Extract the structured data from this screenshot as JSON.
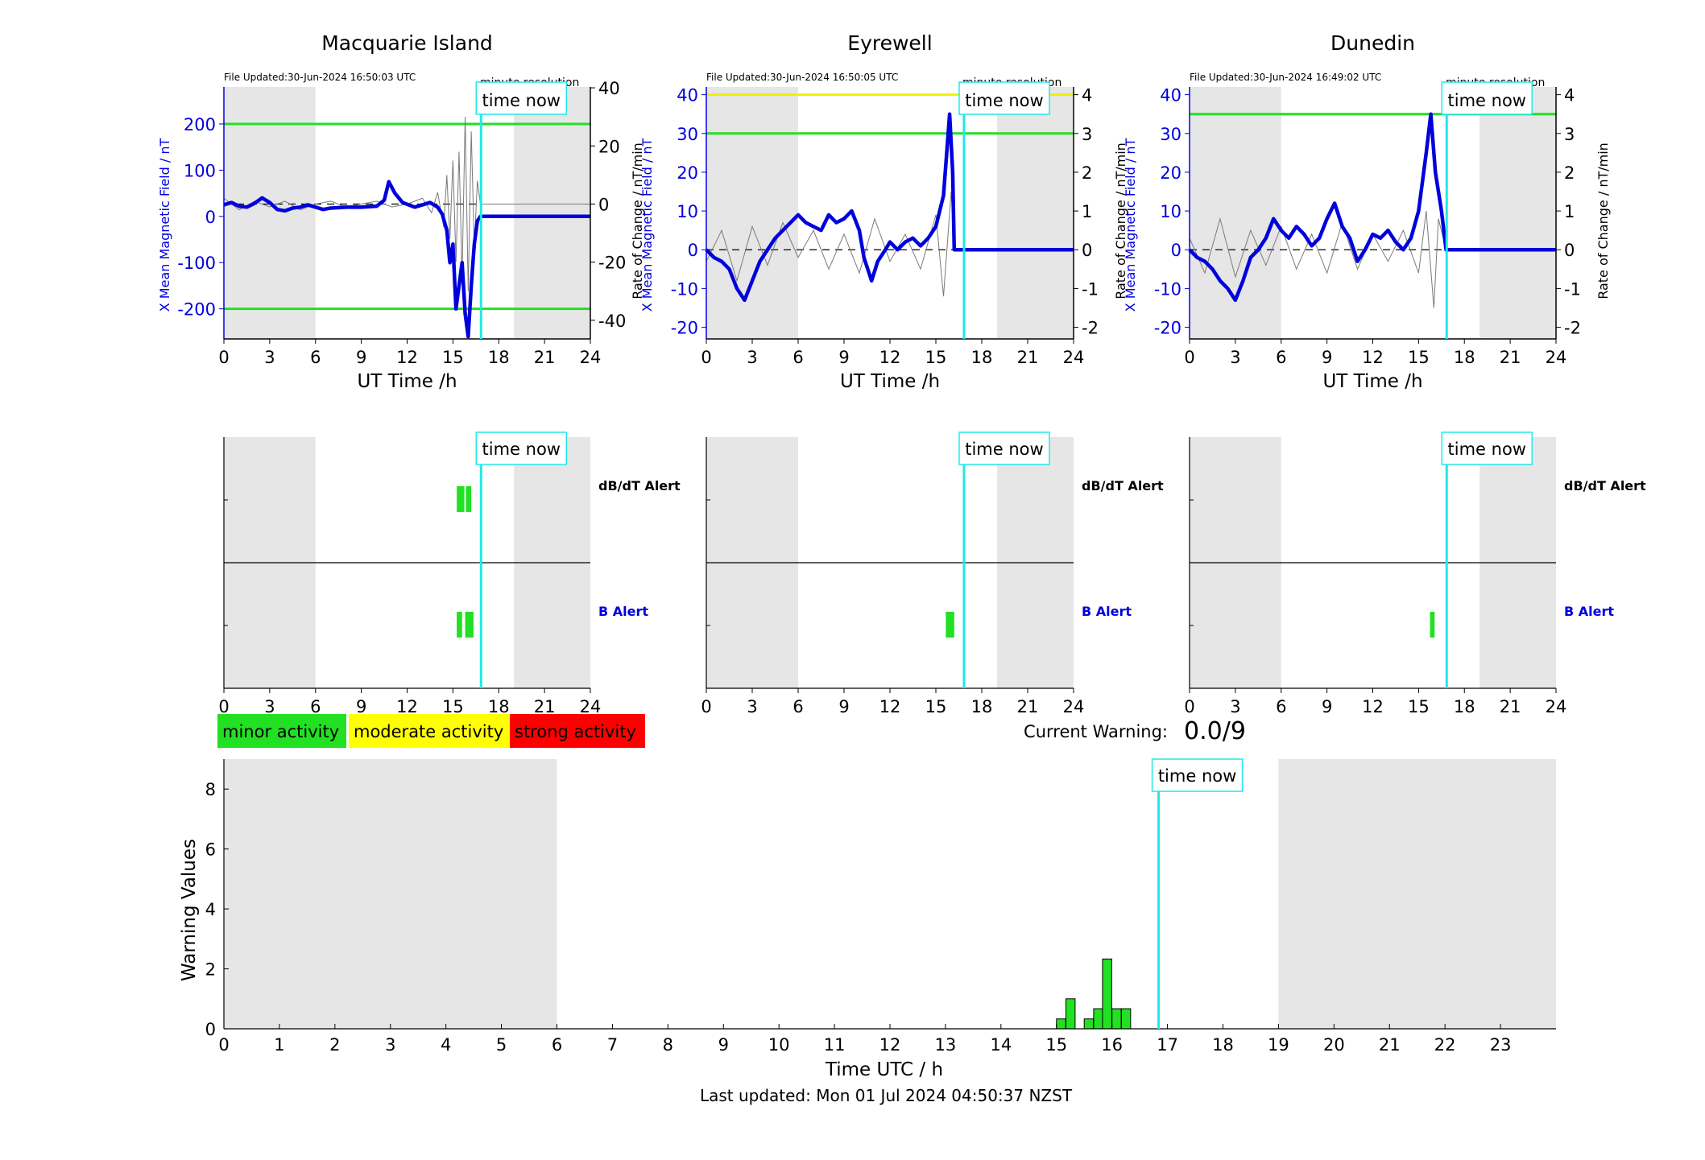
{
  "stations": [
    {
      "name": "Macquarie Island",
      "file_updated": "File Updated:30-Jun-2024 16:50:03 UTC",
      "resolution": "minute resolution",
      "y_left_ticks": [
        -200,
        -100,
        0,
        100,
        200
      ],
      "y_left_range": [
        -265,
        280
      ],
      "y_right_ticks": [
        -40,
        -20,
        0,
        20,
        40
      ],
      "y_right_range": [
        -46.4,
        40.3
      ],
      "thresholds": [
        {
          "value": 200,
          "color": "#22e022"
        },
        {
          "value": -200,
          "color": "#22e022"
        }
      ],
      "x_mean": [
        [
          0,
          25
        ],
        [
          0.5,
          30
        ],
        [
          1,
          22
        ],
        [
          1.5,
          20
        ],
        [
          2,
          28
        ],
        [
          2.5,
          40
        ],
        [
          3,
          30
        ],
        [
          3.5,
          15
        ],
        [
          4,
          12
        ],
        [
          4.5,
          18
        ],
        [
          5,
          20
        ],
        [
          5.5,
          25
        ],
        [
          6,
          20
        ],
        [
          6.5,
          15
        ],
        [
          7,
          18
        ],
        [
          8,
          20
        ],
        [
          9,
          20
        ],
        [
          10,
          22
        ],
        [
          10.5,
          35
        ],
        [
          10.8,
          75
        ],
        [
          11.2,
          50
        ],
        [
          11.7,
          30
        ],
        [
          12.5,
          20
        ],
        [
          13,
          25
        ],
        [
          13.5,
          30
        ],
        [
          14,
          20
        ],
        [
          14.3,
          5
        ],
        [
          14.6,
          -30
        ],
        [
          14.8,
          -100
        ],
        [
          15,
          -60
        ],
        [
          15.2,
          -200
        ],
        [
          15.4,
          -150
        ],
        [
          15.6,
          -100
        ],
        [
          15.8,
          -210
        ],
        [
          16,
          -260
        ],
        [
          16.2,
          -150
        ],
        [
          16.4,
          -60
        ],
        [
          16.6,
          -10
        ],
        [
          16.8,
          0
        ],
        [
          24,
          0
        ]
      ],
      "rate_change": [
        [
          0,
          2
        ],
        [
          1,
          -2
        ],
        [
          2,
          1
        ],
        [
          3,
          -1
        ],
        [
          4,
          1
        ],
        [
          5,
          -2
        ],
        [
          6,
          0
        ],
        [
          7,
          1
        ],
        [
          8,
          -1
        ],
        [
          9,
          0
        ],
        [
          10,
          1
        ],
        [
          11,
          -1
        ],
        [
          12,
          0
        ],
        [
          13,
          2
        ],
        [
          13.6,
          -3
        ],
        [
          14,
          4
        ],
        [
          14.4,
          -8
        ],
        [
          14.6,
          10
        ],
        [
          14.8,
          -12
        ],
        [
          15,
          15
        ],
        [
          15.2,
          -20
        ],
        [
          15.4,
          18
        ],
        [
          15.6,
          -25
        ],
        [
          15.8,
          30
        ],
        [
          16,
          -30
        ],
        [
          16.2,
          25
        ],
        [
          16.4,
          -15
        ],
        [
          16.6,
          8
        ],
        [
          16.8,
          0
        ],
        [
          24,
          0
        ]
      ],
      "alerts": {
        "dbdt": [
          [
            15.25,
            15.75
          ],
          [
            15.85,
            16.2
          ]
        ],
        "b": [
          [
            15.25,
            15.6
          ],
          [
            15.8,
            16.35
          ]
        ]
      }
    },
    {
      "name": "Eyrewell",
      "file_updated": "File Updated:30-Jun-2024 16:50:05 UTC",
      "resolution": "minute resolution",
      "y_left_ticks": [
        -20,
        -10,
        0,
        10,
        20,
        30,
        40
      ],
      "y_left_range": [
        -23,
        42
      ],
      "y_right_ticks": [
        -2,
        -1,
        0,
        1,
        2,
        3,
        4
      ],
      "y_right_range": [
        -2.3,
        4.2
      ],
      "thresholds": [
        {
          "value": 40,
          "color": "#f0f000"
        },
        {
          "value": 30,
          "color": "#22e022"
        }
      ],
      "x_mean": [
        [
          0,
          0
        ],
        [
          0.5,
          -2
        ],
        [
          1,
          -3
        ],
        [
          1.5,
          -5
        ],
        [
          2,
          -10
        ],
        [
          2.5,
          -13
        ],
        [
          3,
          -8
        ],
        [
          3.5,
          -3
        ],
        [
          4,
          0
        ],
        [
          4.5,
          3
        ],
        [
          5,
          5
        ],
        [
          5.5,
          7
        ],
        [
          6,
          9
        ],
        [
          6.5,
          7
        ],
        [
          7,
          6
        ],
        [
          7.5,
          5
        ],
        [
          8,
          9
        ],
        [
          8.5,
          7
        ],
        [
          9,
          8
        ],
        [
          9.5,
          10
        ],
        [
          10,
          5
        ],
        [
          10.3,
          -2
        ],
        [
          10.8,
          -8
        ],
        [
          11.2,
          -3
        ],
        [
          11.7,
          0
        ],
        [
          12,
          2
        ],
        [
          12.5,
          0
        ],
        [
          13,
          2
        ],
        [
          13.5,
          3
        ],
        [
          14,
          1
        ],
        [
          14.5,
          3
        ],
        [
          15,
          6
        ],
        [
          15.5,
          14
        ],
        [
          15.9,
          35
        ],
        [
          16.1,
          20
        ],
        [
          16.2,
          0
        ],
        [
          24,
          0
        ]
      ],
      "rate_change": [
        [
          0,
          -0.3
        ],
        [
          1,
          0.5
        ],
        [
          2,
          -0.8
        ],
        [
          3,
          0.6
        ],
        [
          4,
          -0.4
        ],
        [
          5,
          0.7
        ],
        [
          6,
          -0.2
        ],
        [
          7,
          0.5
        ],
        [
          8,
          -0.5
        ],
        [
          9,
          0.4
        ],
        [
          10,
          -0.6
        ],
        [
          11,
          0.8
        ],
        [
          12,
          -0.3
        ],
        [
          13,
          0.4
        ],
        [
          14,
          -0.5
        ],
        [
          15,
          0.9
        ],
        [
          15.5,
          -1.2
        ],
        [
          16,
          1.5
        ],
        [
          16.2,
          0
        ],
        [
          24,
          0
        ]
      ],
      "alerts": {
        "dbdt": [],
        "b": [
          [
            15.65,
            16.2
          ]
        ]
      }
    },
    {
      "name": "Dunedin",
      "file_updated": "File Updated:30-Jun-2024 16:49:02 UTC",
      "resolution": "minute resolution",
      "y_left_ticks": [
        -20,
        -10,
        0,
        10,
        20,
        30,
        40
      ],
      "y_left_range": [
        -23,
        42
      ],
      "y_right_ticks": [
        -2,
        -1,
        0,
        1,
        2,
        3,
        4
      ],
      "y_right_range": [
        -2.3,
        4.2
      ],
      "thresholds": [
        {
          "value": 35,
          "color": "#22e022"
        }
      ],
      "x_mean": [
        [
          0,
          0
        ],
        [
          0.5,
          -2
        ],
        [
          1,
          -3
        ],
        [
          1.5,
          -5
        ],
        [
          2,
          -8
        ],
        [
          2.5,
          -10
        ],
        [
          3,
          -13
        ],
        [
          3.5,
          -8
        ],
        [
          4,
          -2
        ],
        [
          4.5,
          0
        ],
        [
          5,
          3
        ],
        [
          5.5,
          8
        ],
        [
          6,
          5
        ],
        [
          6.5,
          3
        ],
        [
          7,
          6
        ],
        [
          7.5,
          4
        ],
        [
          8,
          1
        ],
        [
          8.5,
          3
        ],
        [
          9,
          8
        ],
        [
          9.5,
          12
        ],
        [
          10,
          6
        ],
        [
          10.5,
          3
        ],
        [
          11,
          -3
        ],
        [
          11.5,
          0
        ],
        [
          12,
          4
        ],
        [
          12.5,
          3
        ],
        [
          13,
          5
        ],
        [
          13.5,
          2
        ],
        [
          14,
          0
        ],
        [
          14.5,
          3
        ],
        [
          15,
          10
        ],
        [
          15.5,
          25
        ],
        [
          15.8,
          35
        ],
        [
          16.1,
          20
        ],
        [
          16.5,
          10
        ],
        [
          16.8,
          0
        ],
        [
          24,
          0
        ]
      ],
      "rate_change": [
        [
          0,
          0.3
        ],
        [
          1,
          -0.6
        ],
        [
          2,
          0.8
        ],
        [
          3,
          -0.7
        ],
        [
          4,
          0.5
        ],
        [
          5,
          -0.4
        ],
        [
          6,
          0.6
        ],
        [
          7,
          -0.5
        ],
        [
          8,
          0.4
        ],
        [
          9,
          -0.6
        ],
        [
          10,
          0.7
        ],
        [
          11,
          -0.5
        ],
        [
          12,
          0.4
        ],
        [
          13,
          -0.3
        ],
        [
          14,
          0.5
        ],
        [
          15,
          -0.6
        ],
        [
          15.5,
          1
        ],
        [
          16,
          -1.5
        ],
        [
          16.3,
          0.8
        ],
        [
          16.8,
          0
        ],
        [
          24,
          0
        ]
      ],
      "alerts": {
        "dbdt": [],
        "b": [
          [
            15.75,
            16.05
          ]
        ]
      }
    }
  ],
  "labels": {
    "x_axis_hours": "UT Time /h",
    "y_left": "X Mean Magnetic Field / nT",
    "y_right": "Rate of Change / nT/min",
    "time_now": "time now",
    "dbdt_alert": "dB/dT Alert",
    "b_alert": "B Alert",
    "bottom_x_label": "Time UTC / h",
    "bottom_y_label": "Warning Values",
    "current_warning_label": "Current Warning:",
    "current_warning_value": "0.0/9",
    "last_updated": "Last updated: Mon 01 Jul 2024 04:50:37 NZST"
  },
  "legend": [
    {
      "label": "minor activity",
      "color": "#22e022"
    },
    {
      "label": "moderate activity",
      "color": "#ffff00"
    },
    {
      "label": "strong activity",
      "color": "#ff0000"
    }
  ],
  "time_now_hour": 16.84,
  "night_bands_hours": [
    [
      0,
      6
    ],
    [
      19,
      24
    ]
  ],
  "chart_data": {
    "type": "bar",
    "title": "",
    "xlabel": "Time UTC / h",
    "ylabel": "Warning Values",
    "xlim": [
      0,
      24
    ],
    "ylim": [
      0,
      9
    ],
    "x_ticks": [
      0,
      1,
      2,
      3,
      4,
      5,
      6,
      7,
      8,
      9,
      10,
      11,
      12,
      13,
      14,
      15,
      16,
      17,
      18,
      19,
      20,
      21,
      22,
      23
    ],
    "y_ticks": [
      0,
      2,
      4,
      6,
      8
    ],
    "bar_width_hours": 0.166,
    "bars": [
      {
        "x": 15.0,
        "value": 0.33
      },
      {
        "x": 15.17,
        "value": 1.0
      },
      {
        "x": 15.5,
        "value": 0.33
      },
      {
        "x": 15.67,
        "value": 0.67
      },
      {
        "x": 15.83,
        "value": 2.33
      },
      {
        "x": 16.0,
        "value": 0.67
      },
      {
        "x": 16.17,
        "value": 0.67
      }
    ],
    "bar_color": "#22e022"
  }
}
